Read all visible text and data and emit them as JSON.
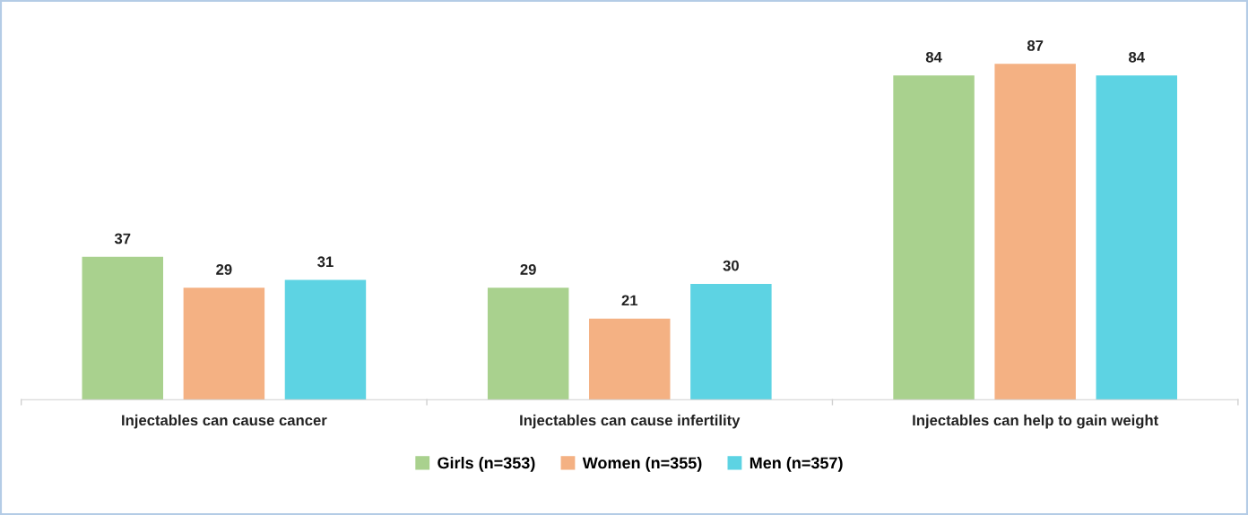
{
  "chart_data": {
    "type": "bar",
    "categories": [
      "Injectables can cause cancer",
      "Injectables can cause infertility",
      "Injectables can help to gain weight"
    ],
    "series": [
      {
        "name": "Girls (n=353)",
        "color": "#a9d18e",
        "values": [
          37,
          29,
          84
        ]
      },
      {
        "name": "Women (n=355)",
        "color": "#f4b183",
        "values": [
          29,
          21,
          87
        ]
      },
      {
        "name": "Men (n=357)",
        "color": "#5dd3e3",
        "values": [
          31,
          30,
          84
        ]
      }
    ],
    "data_labels": true,
    "legend": "bottom",
    "grid": false
  }
}
